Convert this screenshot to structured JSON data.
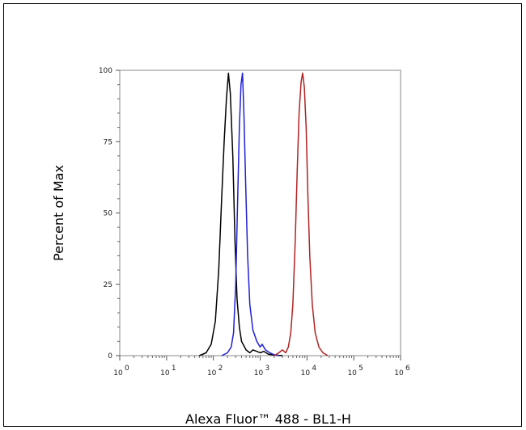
{
  "chart_data": {
    "type": "line",
    "xlabel": "Alexa Fluor™ 488 - BL1-H",
    "ylabel": "Percent of Max",
    "xscale": "log",
    "xlim": [
      1,
      1000000
    ],
    "ylim": [
      0,
      100
    ],
    "x_ticks": [
      {
        "value": 1,
        "label": "10",
        "exp": "0"
      },
      {
        "value": 10,
        "label": "10",
        "exp": "1"
      },
      {
        "value": 100,
        "label": "10",
        "exp": "2"
      },
      {
        "value": 1000,
        "label": "10",
        "exp": "3"
      },
      {
        "value": 10000,
        "label": "10",
        "exp": "4"
      },
      {
        "value": 100000,
        "label": "10",
        "exp": "5"
      },
      {
        "value": 1000000,
        "label": "10",
        "exp": "6"
      }
    ],
    "y_ticks": [
      0,
      25,
      50,
      75,
      100
    ],
    "grid": false,
    "series": [
      {
        "color": "#000000",
        "points": [
          [
            50,
            0
          ],
          [
            70,
            1
          ],
          [
            90,
            4
          ],
          [
            110,
            12
          ],
          [
            130,
            30
          ],
          [
            150,
            55
          ],
          [
            170,
            75
          ],
          [
            190,
            90
          ],
          [
            210,
            99
          ],
          [
            230,
            92
          ],
          [
            260,
            70
          ],
          [
            290,
            40
          ],
          [
            320,
            20
          ],
          [
            360,
            10
          ],
          [
            400,
            5
          ],
          [
            500,
            2
          ],
          [
            600,
            1
          ],
          [
            700,
            2
          ],
          [
            850,
            1.5
          ],
          [
            1000,
            1
          ],
          [
            1200,
            1.5
          ],
          [
            1500,
            0.5
          ],
          [
            2000,
            0.2
          ],
          [
            3000,
            0
          ]
        ]
      },
      {
        "color": "#1f1fd6",
        "points": [
          [
            150,
            0
          ],
          [
            200,
            1
          ],
          [
            240,
            3
          ],
          [
            270,
            8
          ],
          [
            300,
            25
          ],
          [
            330,
            55
          ],
          [
            360,
            80
          ],
          [
            390,
            95
          ],
          [
            420,
            99
          ],
          [
            450,
            85
          ],
          [
            490,
            60
          ],
          [
            540,
            35
          ],
          [
            600,
            18
          ],
          [
            700,
            9
          ],
          [
            850,
            5
          ],
          [
            1000,
            3
          ],
          [
            1100,
            4
          ],
          [
            1300,
            2
          ],
          [
            1600,
            1
          ],
          [
            2000,
            0.3
          ],
          [
            2500,
            0
          ]
        ]
      },
      {
        "color": "#b22222",
        "points": [
          [
            2000,
            0
          ],
          [
            2500,
            1
          ],
          [
            3000,
            2
          ],
          [
            3500,
            1
          ],
          [
            4000,
            3
          ],
          [
            4500,
            8
          ],
          [
            5000,
            18
          ],
          [
            5600,
            40
          ],
          [
            6200,
            65
          ],
          [
            6800,
            85
          ],
          [
            7500,
            96
          ],
          [
            8100,
            99
          ],
          [
            8800,
            94
          ],
          [
            9600,
            80
          ],
          [
            10500,
            55
          ],
          [
            11500,
            35
          ],
          [
            13000,
            18
          ],
          [
            15000,
            8
          ],
          [
            18000,
            3
          ],
          [
            22000,
            1
          ],
          [
            28000,
            0
          ]
        ]
      }
    ]
  }
}
